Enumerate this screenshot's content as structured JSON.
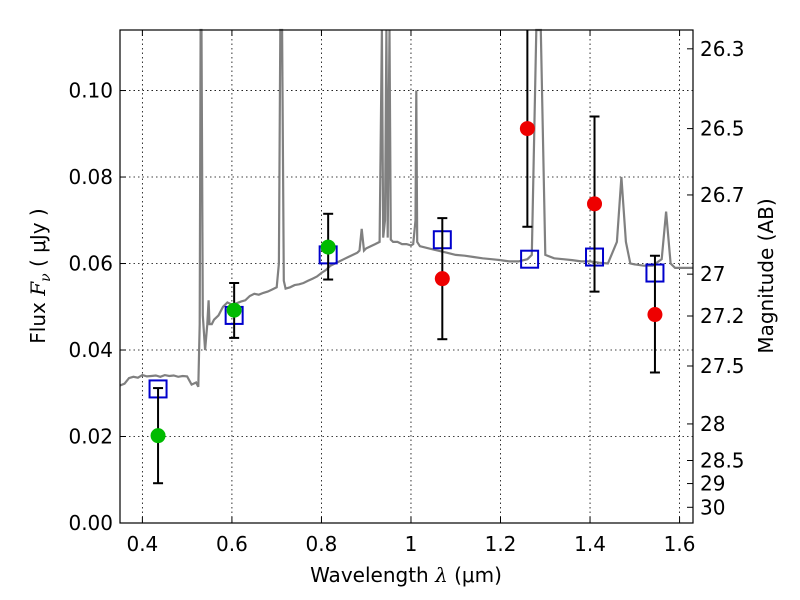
{
  "chart_data": {
    "type": "scatter",
    "title": "",
    "xlabel_prefix": "Wavelength ",
    "xlabel_symbol": "λ",
    "xlabel_unit": " (μm)",
    "ylabel_prefix": "Flux ",
    "ylabel_symbol": "F",
    "ylabel_subscript": "ν",
    "ylabel_unit": " ( μJy )",
    "y2label": "Magnitude (AB)",
    "xlim": [
      0.35,
      1.63
    ],
    "ylim": [
      0.0,
      0.114
    ],
    "grid": true,
    "xticks": [
      {
        "v": 0.4,
        "label": "0.4"
      },
      {
        "v": 0.6,
        "label": "0.6"
      },
      {
        "v": 0.8,
        "label": "0.8"
      },
      {
        "v": 1.0,
        "label": "1"
      },
      {
        "v": 1.2,
        "label": "1.2"
      },
      {
        "v": 1.4,
        "label": "1.4"
      },
      {
        "v": 1.6,
        "label": "1.6"
      }
    ],
    "yticks": [
      {
        "v": 0.0,
        "label": "0.00"
      },
      {
        "v": 0.02,
        "label": "0.02"
      },
      {
        "v": 0.04,
        "label": "0.04"
      },
      {
        "v": 0.06,
        "label": "0.06"
      },
      {
        "v": 0.08,
        "label": "0.08"
      },
      {
        "v": 0.1,
        "label": "0.10"
      }
    ],
    "y2ticks": [
      {
        "mag": 26.3,
        "label": "26.3"
      },
      {
        "mag": 26.5,
        "label": "26.5"
      },
      {
        "mag": 26.7,
        "label": "26.7"
      },
      {
        "mag": 27.0,
        "label": "27"
      },
      {
        "mag": 27.2,
        "label": "27.2"
      },
      {
        "mag": 27.5,
        "label": "27.5"
      },
      {
        "mag": 28.0,
        "label": "28"
      },
      {
        "mag": 28.5,
        "label": "28.5"
      },
      {
        "mag": 29.0,
        "label": "29"
      },
      {
        "mag": 30.0,
        "label": "30"
      }
    ],
    "series": [
      {
        "name": "model-spectrum",
        "kind": "line",
        "color": "#808080",
        "points": [
          [
            0.35,
            0.0318
          ],
          [
            0.36,
            0.0322
          ],
          [
            0.37,
            0.0335
          ],
          [
            0.38,
            0.0338
          ],
          [
            0.39,
            0.0336
          ],
          [
            0.4,
            0.0342
          ],
          [
            0.41,
            0.0339
          ],
          [
            0.42,
            0.034
          ],
          [
            0.43,
            0.0341
          ],
          [
            0.44,
            0.0338
          ],
          [
            0.45,
            0.0342
          ],
          [
            0.46,
            0.034
          ],
          [
            0.47,
            0.0341
          ],
          [
            0.48,
            0.0338
          ],
          [
            0.49,
            0.034
          ],
          [
            0.5,
            0.0339
          ],
          [
            0.51,
            0.032
          ],
          [
            0.52,
            0.0325
          ],
          [
            0.525,
            0.0315
          ],
          [
            0.528,
            0.046
          ],
          [
            0.53,
            0.114
          ],
          [
            0.532,
            0.114
          ],
          [
            0.535,
            0.048
          ],
          [
            0.54,
            0.04
          ],
          [
            0.545,
            0.046
          ],
          [
            0.548,
            0.0515
          ],
          [
            0.55,
            0.046
          ],
          [
            0.555,
            0.046
          ],
          [
            0.56,
            0.047
          ],
          [
            0.57,
            0.048
          ],
          [
            0.58,
            0.05
          ],
          [
            0.59,
            0.051
          ],
          [
            0.6,
            0.0505
          ],
          [
            0.61,
            0.0508
          ],
          [
            0.62,
            0.0512
          ],
          [
            0.63,
            0.0515
          ],
          [
            0.64,
            0.0525
          ],
          [
            0.65,
            0.053
          ],
          [
            0.66,
            0.0528
          ],
          [
            0.67,
            0.0532
          ],
          [
            0.68,
            0.0535
          ],
          [
            0.69,
            0.054
          ],
          [
            0.7,
            0.0545
          ],
          [
            0.705,
            0.06
          ],
          [
            0.708,
            0.114
          ],
          [
            0.712,
            0.114
          ],
          [
            0.716,
            0.056
          ],
          [
            0.72,
            0.0542
          ],
          [
            0.73,
            0.0545
          ],
          [
            0.74,
            0.055
          ],
          [
            0.75,
            0.0552
          ],
          [
            0.76,
            0.0555
          ],
          [
            0.77,
            0.056
          ],
          [
            0.78,
            0.0565
          ],
          [
            0.79,
            0.057
          ],
          [
            0.8,
            0.0578
          ],
          [
            0.81,
            0.0585
          ],
          [
            0.82,
            0.0595
          ],
          [
            0.83,
            0.06
          ],
          [
            0.84,
            0.0605
          ],
          [
            0.85,
            0.061
          ],
          [
            0.86,
            0.0615
          ],
          [
            0.87,
            0.062
          ],
          [
            0.88,
            0.0625
          ],
          [
            0.885,
            0.063
          ],
          [
            0.89,
            0.068
          ],
          [
            0.895,
            0.063
          ],
          [
            0.9,
            0.0635
          ],
          [
            0.91,
            0.064
          ],
          [
            0.92,
            0.0645
          ],
          [
            0.93,
            0.065
          ],
          [
            0.935,
            0.114
          ],
          [
            0.938,
            0.066
          ],
          [
            0.942,
            0.07
          ],
          [
            0.945,
            0.114
          ],
          [
            0.948,
            0.066
          ],
          [
            0.952,
            0.114
          ],
          [
            0.955,
            0.0655
          ],
          [
            0.96,
            0.065
          ],
          [
            0.97,
            0.065
          ],
          [
            0.98,
            0.0645
          ],
          [
            0.99,
            0.0645
          ],
          [
            1.0,
            0.0642
          ],
          [
            1.005,
            0.0645
          ],
          [
            1.01,
            0.07
          ],
          [
            1.012,
            0.1
          ],
          [
            1.014,
            0.065
          ],
          [
            1.02,
            0.064
          ],
          [
            1.04,
            0.0635
          ],
          [
            1.06,
            0.063
          ],
          [
            1.08,
            0.0625
          ],
          [
            1.1,
            0.062
          ],
          [
            1.12,
            0.0618
          ],
          [
            1.14,
            0.0615
          ],
          [
            1.16,
            0.0612
          ],
          [
            1.18,
            0.061
          ],
          [
            1.2,
            0.0608
          ],
          [
            1.22,
            0.0605
          ],
          [
            1.24,
            0.0605
          ],
          [
            1.26,
            0.061
          ],
          [
            1.27,
            0.062
          ],
          [
            1.28,
            0.114
          ],
          [
            1.29,
            0.114
          ],
          [
            1.3,
            0.062
          ],
          [
            1.32,
            0.0612
          ],
          [
            1.34,
            0.061
          ],
          [
            1.36,
            0.0608
          ],
          [
            1.38,
            0.0605
          ],
          [
            1.4,
            0.0605
          ],
          [
            1.42,
            0.0602
          ],
          [
            1.44,
            0.06
          ],
          [
            1.46,
            0.065
          ],
          [
            1.47,
            0.08
          ],
          [
            1.48,
            0.065
          ],
          [
            1.49,
            0.06
          ],
          [
            1.5,
            0.0598
          ],
          [
            1.52,
            0.0595
          ],
          [
            1.54,
            0.0595
          ],
          [
            1.56,
            0.061
          ],
          [
            1.57,
            0.072
          ],
          [
            1.58,
            0.06
          ],
          [
            1.59,
            0.059
          ],
          [
            1.6,
            0.059
          ],
          [
            1.63,
            0.059
          ]
        ]
      },
      {
        "name": "model-photometry",
        "kind": "open-square",
        "color": "#0000cc",
        "points": [
          [
            0.435,
            0.031
          ],
          [
            0.605,
            0.048
          ],
          [
            0.815,
            0.062
          ],
          [
            1.07,
            0.0655
          ],
          [
            1.265,
            0.061
          ],
          [
            1.41,
            0.0615
          ],
          [
            1.545,
            0.0578
          ]
        ]
      },
      {
        "name": "observed-flux-detected",
        "kind": "filled-circle-errorbar",
        "color": "#00bb00",
        "points": [
          {
            "x": 0.435,
            "y": 0.0202,
            "lo": 0.0092,
            "hi": 0.0312
          },
          {
            "x": 0.605,
            "y": 0.0492,
            "lo": 0.0428,
            "hi": 0.0555
          },
          {
            "x": 0.815,
            "y": 0.0638,
            "lo": 0.0563,
            "hi": 0.0715
          }
        ]
      },
      {
        "name": "observed-flux-nir",
        "kind": "filled-circle-errorbar",
        "color": "#ee0000",
        "points": [
          {
            "x": 1.07,
            "y": 0.0565,
            "lo": 0.0425,
            "hi": 0.0705
          },
          {
            "x": 1.26,
            "y": 0.0912,
            "lo": 0.0685,
            "hi": 0.114
          },
          {
            "x": 1.41,
            "y": 0.0738,
            "lo": 0.0535,
            "hi": 0.094
          },
          {
            "x": 1.545,
            "y": 0.0482,
            "lo": 0.0348,
            "hi": 0.0618
          }
        ]
      }
    ]
  }
}
